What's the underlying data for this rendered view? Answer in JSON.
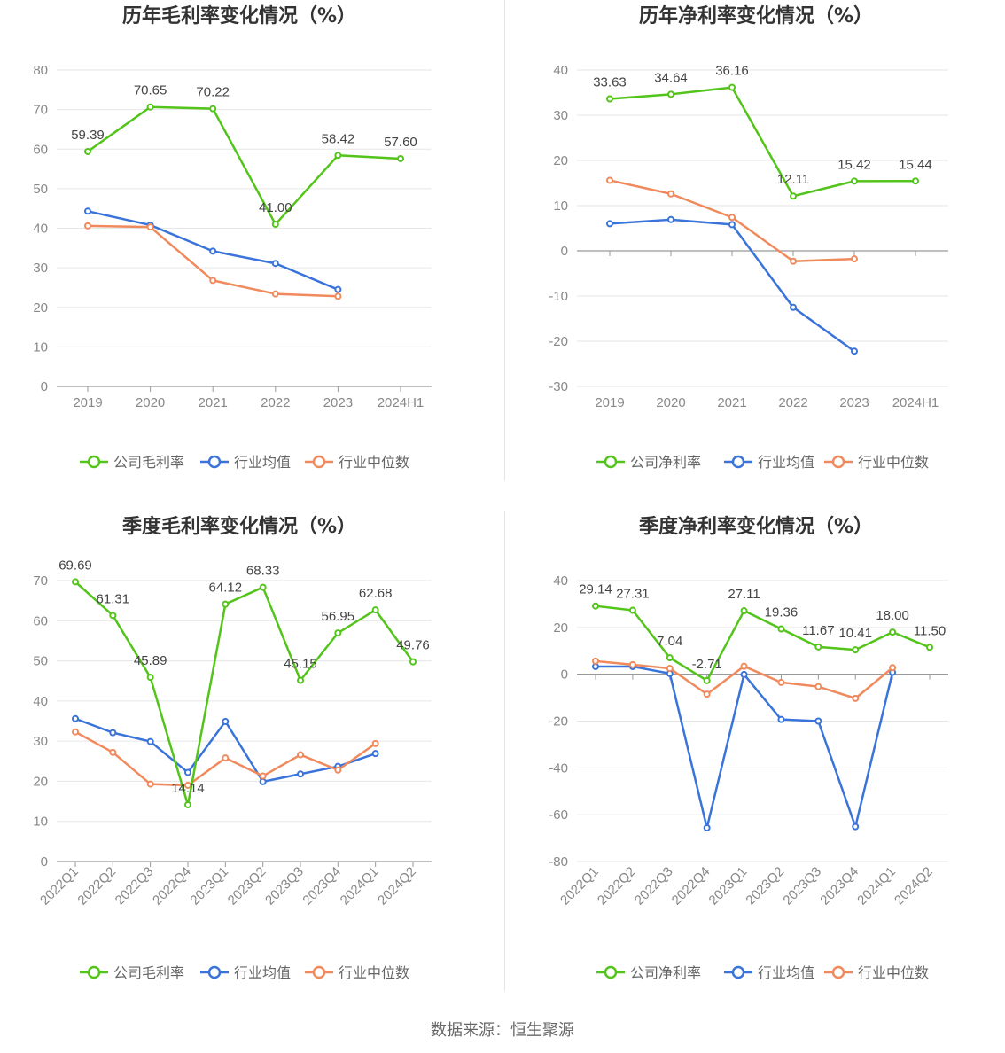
{
  "source": {
    "label": "数据来源：恒生聚源"
  },
  "colors": {
    "company": "#52c41a",
    "avg": "#3a73d9",
    "median": "#f08a5d",
    "grid": "#e6e6e6",
    "axis": "#999999"
  },
  "chart_data": [
    {
      "id": "annual-gross",
      "type": "line",
      "title": "历年毛利率变化情况（%）",
      "categories": [
        "2019",
        "2020",
        "2021",
        "2022",
        "2023",
        "2024H1"
      ],
      "ylim": [
        0,
        80
      ],
      "yticks": [
        0,
        10,
        20,
        30,
        40,
        50,
        60,
        70,
        80
      ],
      "grid": true,
      "legend": "bottom",
      "series": [
        {
          "name": "公司毛利率",
          "values": [
            59.39,
            70.65,
            70.22,
            41.0,
            58.42,
            57.6
          ],
          "labels": [
            "59.39",
            "70.65",
            "70.22",
            "41.00",
            "58.42",
            "57.60"
          ]
        },
        {
          "name": "行业均值",
          "values": [
            44.3,
            40.8,
            34.2,
            31.1,
            24.5,
            null
          ]
        },
        {
          "name": "行业中位数",
          "values": [
            40.6,
            40.3,
            26.8,
            23.4,
            22.8,
            null
          ]
        }
      ]
    },
    {
      "id": "annual-net",
      "type": "line",
      "title": "历年净利率变化情况（%）",
      "categories": [
        "2019",
        "2020",
        "2021",
        "2022",
        "2023",
        "2024H1"
      ],
      "ylim": [
        -30,
        40
      ],
      "yticks": [
        -30,
        -20,
        -10,
        0,
        10,
        20,
        30,
        40
      ],
      "grid": true,
      "legend": "bottom",
      "series": [
        {
          "name": "公司净利率",
          "values": [
            33.63,
            34.64,
            36.16,
            12.11,
            15.42,
            15.44
          ],
          "labels": [
            "33.63",
            "34.64",
            "36.16",
            "12.11",
            "15.42",
            "15.44"
          ]
        },
        {
          "name": "行业均值",
          "values": [
            6.0,
            6.9,
            5.8,
            -12.5,
            -22.2,
            null
          ]
        },
        {
          "name": "行业中位数",
          "values": [
            15.6,
            12.6,
            7.4,
            -2.3,
            -1.8,
            null
          ]
        }
      ]
    },
    {
      "id": "quarterly-gross",
      "type": "line",
      "title": "季度毛利率变化情况（%）",
      "categories": [
        "2022Q1",
        "2022Q2",
        "2022Q3",
        "2022Q4",
        "2023Q1",
        "2023Q2",
        "2023Q3",
        "2023Q4",
        "2024Q1",
        "2024Q2"
      ],
      "ylim": [
        0,
        70
      ],
      "yticks": [
        0,
        10,
        20,
        30,
        40,
        50,
        60,
        70
      ],
      "grid": true,
      "legend": "bottom",
      "series": [
        {
          "name": "公司毛利率",
          "values": [
            69.69,
            61.31,
            45.89,
            14.14,
            64.12,
            68.33,
            45.15,
            56.95,
            62.68,
            49.76
          ],
          "labels": [
            "69.69",
            "61.31",
            "45.89",
            "14.14",
            "64.12",
            "68.33",
            "45.15",
            "56.95",
            "62.68",
            "49.76"
          ]
        },
        {
          "name": "行业均值",
          "values": [
            35.6,
            32.1,
            29.9,
            22.2,
            34.9,
            19.9,
            21.8,
            23.7,
            26.9,
            null
          ]
        },
        {
          "name": "行业中位数",
          "values": [
            32.3,
            27.2,
            19.3,
            19.0,
            25.8,
            21.3,
            26.6,
            22.8,
            29.4,
            null
          ]
        }
      ]
    },
    {
      "id": "quarterly-net",
      "type": "line",
      "title": "季度净利率变化情况（%）",
      "categories": [
        "2022Q1",
        "2022Q2",
        "2022Q3",
        "2022Q4",
        "2023Q1",
        "2023Q2",
        "2023Q3",
        "2023Q4",
        "2024Q1",
        "2024Q2"
      ],
      "ylim": [
        -80,
        40
      ],
      "yticks": [
        -80,
        -60,
        -40,
        -20,
        0,
        20,
        40
      ],
      "grid": true,
      "legend": "bottom",
      "series": [
        {
          "name": "公司净利率",
          "values": [
            29.14,
            27.31,
            7.04,
            -2.71,
            27.11,
            19.36,
            11.67,
            10.41,
            18.0,
            11.5
          ],
          "labels": [
            "29.14",
            "27.31",
            "7.04",
            "-2.71",
            "27.11",
            "19.36",
            "11.67",
            "10.41",
            "18.00",
            "11.50"
          ]
        },
        {
          "name": "行业均值",
          "values": [
            3.3,
            3.3,
            0.3,
            -65.6,
            -0.1,
            -19.3,
            -20.0,
            -65.1,
            0.8,
            null
          ]
        },
        {
          "name": "行业中位数",
          "values": [
            5.6,
            4.1,
            2.5,
            -8.5,
            3.4,
            -3.5,
            -5.3,
            -10.3,
            2.8,
            null
          ]
        }
      ]
    }
  ]
}
